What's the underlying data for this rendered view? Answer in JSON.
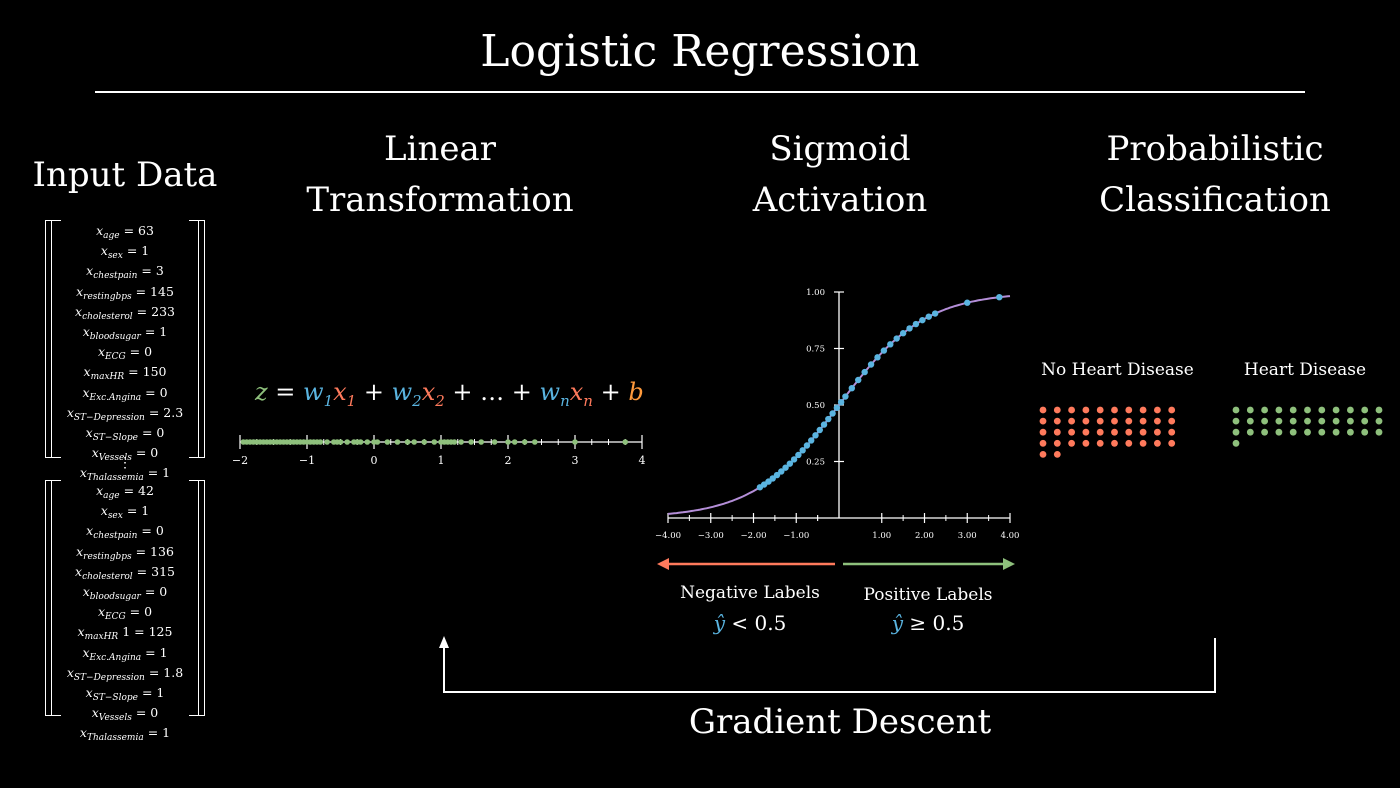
{
  "title": "Logistic Regression",
  "sections": {
    "input": "Input Data",
    "linear_line1": "Linear",
    "linear_line2": "Transformation",
    "sigmoid_line1": "Sigmoid",
    "sigmoid_line2": "Activation",
    "prob_line1": "Probabilistic",
    "prob_line2": "Classification"
  },
  "matrix1": [
    {
      "var": "x",
      "sub": "age",
      "eq": "= 63"
    },
    {
      "var": "x",
      "sub": "sex",
      "eq": "= 1"
    },
    {
      "var": "x",
      "sub": "chestpain",
      "eq": "= 3"
    },
    {
      "var": "x",
      "sub": "restingbps",
      "eq": "= 145"
    },
    {
      "var": "x",
      "sub": "cholesterol",
      "eq": "= 233"
    },
    {
      "var": "x",
      "sub": "bloodsugar",
      "eq": "= 1"
    },
    {
      "var": "x",
      "sub": "ECG",
      "eq": "= 0"
    },
    {
      "var": "x",
      "sub": "maxHR",
      "eq": "= 150"
    },
    {
      "var": "x",
      "sub": "Exc.Angina",
      "eq": "= 0"
    },
    {
      "var": "x",
      "sub": "ST−Depression",
      "eq": "= 2.3"
    },
    {
      "var": "x",
      "sub": "ST−Slope",
      "eq": "= 0"
    },
    {
      "var": "x",
      "sub": "Vessels",
      "eq": "= 0"
    },
    {
      "var": "x",
      "sub": "Thalassemia",
      "eq": "= 1"
    }
  ],
  "matrix2": [
    {
      "var": "x",
      "sub": "age",
      "eq": "= 42"
    },
    {
      "var": "x",
      "sub": "sex",
      "eq": "= 1"
    },
    {
      "var": "x",
      "sub": "chestpain",
      "eq": "= 0"
    },
    {
      "var": "x",
      "sub": "restingbps",
      "eq": "= 136"
    },
    {
      "var": "x",
      "sub": "cholesterol",
      "eq": "= 315"
    },
    {
      "var": "x",
      "sub": "bloodsugar",
      "eq": "= 0"
    },
    {
      "var": "x",
      "sub": "ECG",
      "eq": "= 0"
    },
    {
      "var": "x",
      "sub": "maxHR",
      "eq": "1 = 125"
    },
    {
      "var": "x",
      "sub": "Exc.Angina",
      "eq": "= 1"
    },
    {
      "var": "x",
      "sub": "ST−Depression",
      "eq": "= 1.8"
    },
    {
      "var": "x",
      "sub": "ST−Slope",
      "eq": "= 1"
    },
    {
      "var": "x",
      "sub": "Vessels",
      "eq": "= 0"
    },
    {
      "var": "x",
      "sub": "Thalassemia",
      "eq": "= 1"
    }
  ],
  "vdots": "⋮",
  "equation": {
    "z": "z",
    "eq": " = ",
    "w1": "w",
    "s1": "1",
    "x1": "x",
    "sx1": "1",
    "p1": " + ",
    "w2": "w",
    "s2": "2",
    "x2": "x",
    "sx2": "2",
    "p2": " + … + ",
    "wn": "w",
    "sn": "n",
    "xn": "x",
    "sxn": "n",
    "p3": " + ",
    "b": "b"
  },
  "numberline": {
    "ticks": [
      "−2",
      "−1",
      "0",
      "1",
      "2",
      "3",
      "4"
    ],
    "points": [
      -1.95,
      -1.9,
      -1.85,
      -1.8,
      -1.75,
      -1.7,
      -1.65,
      -1.6,
      -1.55,
      -1.5,
      -1.45,
      -1.4,
      -1.35,
      -1.3,
      -1.25,
      -1.2,
      -1.15,
      -1.1,
      -1.05,
      -1.0,
      -0.95,
      -0.9,
      -0.85,
      -0.8,
      -0.7,
      -0.6,
      -0.55,
      -0.5,
      -0.4,
      -0.3,
      -0.25,
      -0.2,
      -0.1,
      0.0,
      0.05,
      0.2,
      0.35,
      0.5,
      0.6,
      0.75,
      0.9,
      1.0,
      1.05,
      1.1,
      1.15,
      1.2,
      1.3,
      1.45,
      1.6,
      1.8,
      2.0,
      2.1,
      2.25,
      2.4,
      3.0,
      3.75
    ]
  },
  "chart_data": {
    "type": "scatter",
    "title": "",
    "xlabel": "",
    "ylabel": "",
    "xlim": [
      -4,
      4
    ],
    "ylim": [
      0,
      1
    ],
    "x_ticks": [
      "−4.00",
      "−3.00",
      "−2.00",
      "−1.00",
      "1.00",
      "2.00",
      "3.00",
      "4.00"
    ],
    "y_ticks": [
      "0.25",
      "0.50",
      "0.75",
      "1.00"
    ],
    "curve": "sigmoid",
    "points_x": [
      -1.85,
      -1.75,
      -1.65,
      -1.55,
      -1.45,
      -1.35,
      -1.25,
      -1.15,
      -1.05,
      -0.95,
      -0.85,
      -0.75,
      -0.65,
      -0.55,
      -0.45,
      -0.35,
      -0.25,
      -0.15,
      -0.05,
      0.05,
      0.15,
      0.3,
      0.45,
      0.6,
      0.75,
      0.9,
      1.05,
      1.2,
      1.35,
      1.5,
      1.65,
      1.8,
      1.95,
      2.1,
      2.25,
      3.0,
      3.75
    ]
  },
  "labels": {
    "negative": "Negative Labels",
    "positive": "Positive Labels",
    "neg_yhat": "ŷ",
    "neg_rel": " < 0.5",
    "pos_yhat": "ŷ",
    "pos_rel": " ≥ 0.5"
  },
  "classes": {
    "no_hd": "No Heart Disease",
    "hd": "Heart Disease",
    "no_hd_count": 42,
    "hd_count": 34
  },
  "gradient_descent": "Gradient Descent",
  "colors": {
    "green": "#8ec07c",
    "blue": "#5ab4e0",
    "red": "#ff7a5c",
    "purple": "#b48ed8"
  }
}
